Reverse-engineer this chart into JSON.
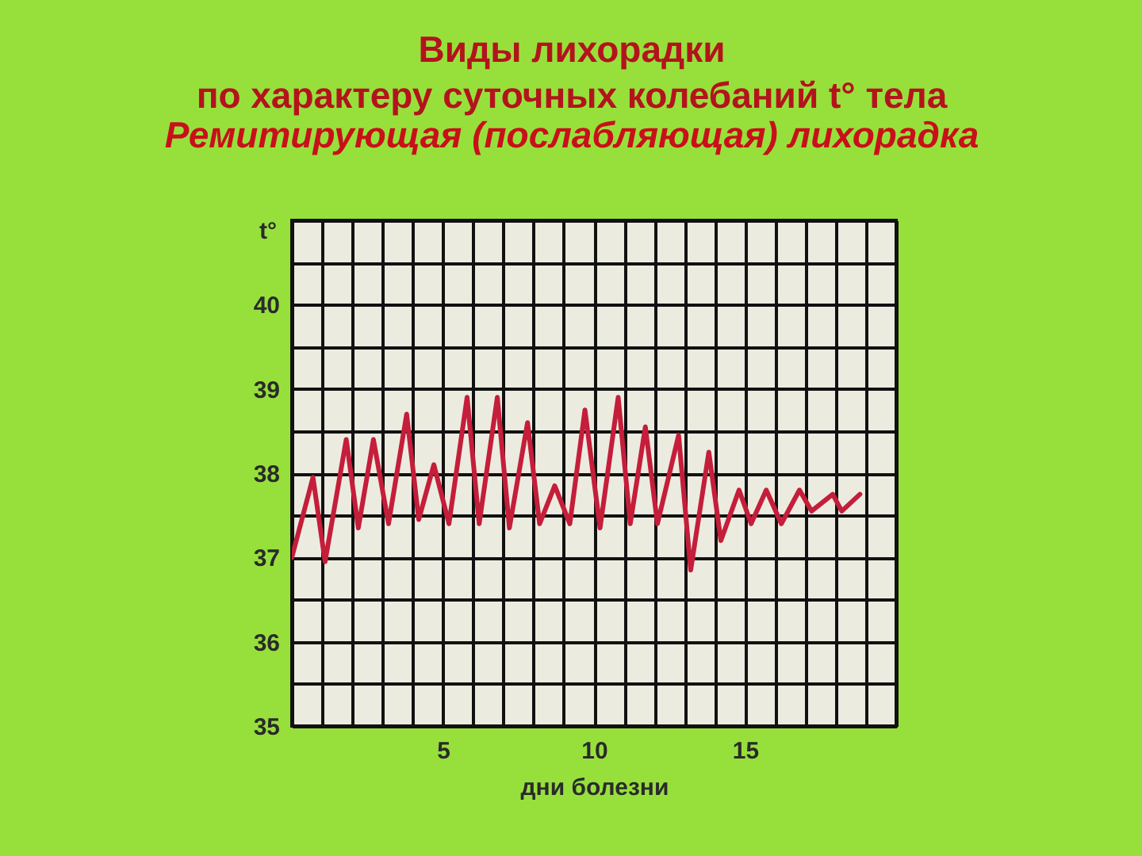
{
  "chart_data": {
    "type": "line",
    "title": "Виды лихорадки\nпо характеру суточных колебаний  t° тела",
    "subtitle": "Ремитирующая (послабляющая) лихорадка",
    "xlabel": "дни болезни",
    "ylabel": "t°",
    "x": [
      0,
      0.7,
      1.1,
      1.8,
      2.2,
      2.7,
      3.2,
      3.8,
      4.2,
      4.7,
      5.2,
      5.8,
      6.2,
      6.8,
      7.2,
      7.8,
      8.2,
      8.7,
      9.2,
      9.7,
      10.2,
      10.8,
      11.2,
      11.7,
      12.1,
      12.8,
      13.2,
      13.8,
      14.2,
      14.8,
      15.2,
      15.7,
      16.2,
      16.8,
      17.2,
      17.9,
      18.2,
      18.8
    ],
    "series": [
      {
        "color": "#c41e3a",
        "values": [
          37.0,
          37.95,
          36.95,
          38.4,
          37.35,
          38.4,
          37.4,
          38.7,
          37.45,
          38.1,
          37.4,
          38.9,
          37.4,
          38.9,
          37.35,
          38.6,
          37.4,
          37.85,
          37.4,
          38.75,
          37.35,
          38.9,
          37.4,
          38.55,
          37.4,
          38.45,
          36.85,
          38.25,
          37.2,
          37.8,
          37.4,
          37.8,
          37.4,
          37.8,
          37.55,
          37.75,
          37.55,
          37.75
        ]
      }
    ],
    "xlim": [
      0,
      20
    ],
    "ylim": [
      35,
      41
    ],
    "xticks": [
      {
        "value": 0,
        "label": null
      },
      {
        "value": 1,
        "label": null
      },
      {
        "value": 2,
        "label": null
      },
      {
        "value": 3,
        "label": null
      },
      {
        "value": 4,
        "label": null
      },
      5,
      {
        "value": 6,
        "label": null
      },
      {
        "value": 7,
        "label": null
      },
      {
        "value": 8,
        "label": null
      },
      {
        "value": 9,
        "label": null
      },
      10,
      {
        "value": 11,
        "label": null
      },
      {
        "value": 12,
        "label": null
      },
      {
        "value": 13,
        "label": null
      },
      {
        "value": 14,
        "label": null
      },
      15,
      {
        "value": 16,
        "label": null
      },
      {
        "value": 17,
        "label": null
      },
      {
        "value": 18,
        "label": null
      },
      {
        "value": 19,
        "label": null
      },
      {
        "value": 20,
        "label": null
      }
    ],
    "yticks": [
      35,
      {
        "value": 35.5,
        "label": null
      },
      36,
      {
        "value": 36.5,
        "label": null
      },
      37,
      {
        "value": 37.5,
        "label": null
      },
      38,
      {
        "value": 38.5,
        "label": null
      },
      39,
      {
        "value": 39.5,
        "label": null
      },
      40,
      {
        "value": 40.5,
        "label": null
      },
      {
        "value": 41,
        "label": null
      }
    ],
    "grid": true,
    "marker": "none",
    "line_style": "solid"
  }
}
